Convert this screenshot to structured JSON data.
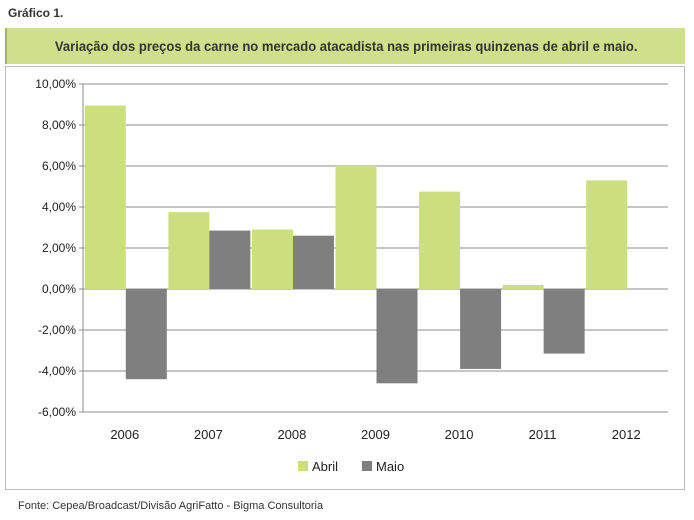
{
  "figure_label": "Gráfico 1.",
  "source": "Fonte: Cepea/Broadcast/Divisão AgriFatto - Bigma Consultoria",
  "colors": {
    "abril": "#ccdf7e",
    "maio": "#7f7f7f",
    "title_bg": "#cfe08c"
  },
  "chart_data": {
    "type": "bar",
    "title": "Variação dos preços da carne no mercado atacadista nas primeiras quinzenas de abril e maio.",
    "categories": [
      "2006",
      "2007",
      "2008",
      "2009",
      "2010",
      "2011",
      "2012"
    ],
    "series": [
      {
        "name": "Abril",
        "values": [
          8.95,
          3.75,
          2.9,
          6.05,
          4.75,
          0.2,
          5.3
        ]
      },
      {
        "name": "Maio",
        "values": [
          -4.4,
          2.85,
          2.6,
          -4.6,
          -3.9,
          -3.15,
          null
        ]
      }
    ],
    "ylim": [
      -6,
      10
    ],
    "yticks": [
      10,
      8,
      6,
      4,
      2,
      0,
      -2,
      -4,
      -6
    ],
    "ytick_labels": [
      "10,00%",
      "8,00%",
      "6,00%",
      "4,00%",
      "2,00%",
      "0,00%",
      "-2,00%",
      "-4,00%",
      "-6,00%"
    ],
    "xlabel": "",
    "ylabel": "",
    "grid": true,
    "legend_position": "bottom"
  }
}
